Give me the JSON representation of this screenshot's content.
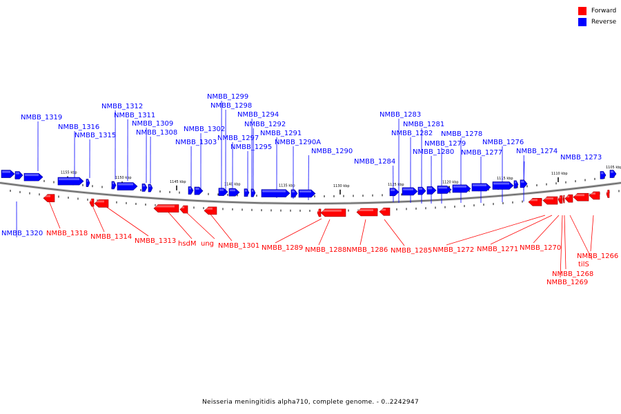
{
  "legend": {
    "forward_label": "Forward",
    "reverse_label": "Reverse",
    "forward_color": "#ff0000",
    "reverse_color": "#0000ff"
  },
  "footer": {
    "caption": "Neisseria meningitidis alpha710, complete genome. - 0..2242947"
  },
  "scale_ticks": [
    "1155 kbp",
    "1150 kbp",
    "1145 kbp",
    "1140 kbp",
    "1135 kbp",
    "1130 kbp",
    "1125 kbp",
    "1120 kbp",
    "1115 kbp",
    "1110 kbp",
    "1105 kbp"
  ],
  "reverse_labels": [
    "NMBB_1319",
    "NMBB_1316",
    "NMBB_1315",
    "NMBB_1312",
    "NMBB_1311",
    "NMBB_1309",
    "NMBB_1308",
    "NMBB_1303",
    "NMBB_1302",
    "NMBB_1299",
    "NMBB_1298",
    "NMBB_1297",
    "NMBB_1295",
    "NMBB_1294",
    "NMBB_1292",
    "NMBB_1291",
    "NMBB_1290A",
    "NMBB_1290",
    "NMBB_1284",
    "NMBB_1283",
    "NMBB_1282",
    "NMBB_1281",
    "NMBB_1280",
    "NMBB_1279",
    "NMBB_1278",
    "NMBB_1277",
    "NMBB_1276",
    "NMBB_1274",
    "NMBB_1273",
    "NMBB_1320"
  ],
  "forward_labels": [
    "NMBB_1318",
    "NMBB_1314",
    "NMBB_1313",
    "hsdM",
    "ung",
    "NMBB_1301",
    "NMBB_1289",
    "NMBB_1288",
    "NMBB_1286",
    "NMBB_1285",
    "NMBB_1272",
    "NMBB_1271",
    "NMBB_1270",
    "NMBB_1266",
    "tilS",
    "NMBB_1268",
    "NMBB_1269"
  ]
}
